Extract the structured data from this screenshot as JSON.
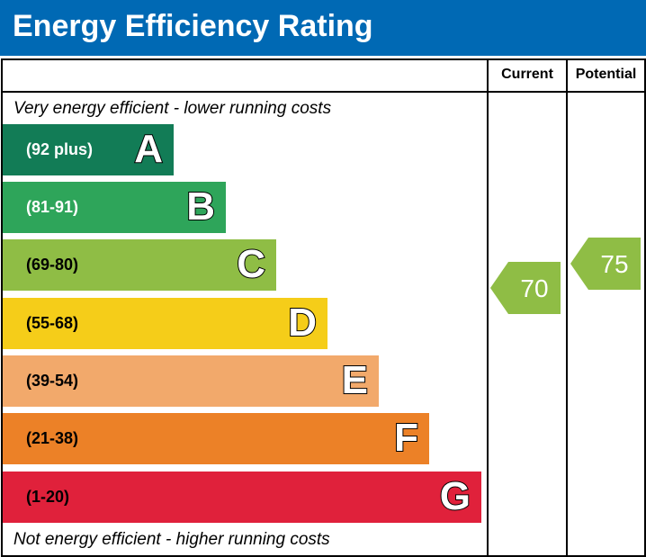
{
  "title": "Energy Efficiency Rating",
  "columns": {
    "current": "Current",
    "potential": "Potential"
  },
  "notes": {
    "top": "Very energy efficient - lower running costs",
    "bottom": "Not energy efficient - higher running costs"
  },
  "chart_data": {
    "type": "bar",
    "bands": [
      {
        "letter": "A",
        "range": "(92 plus)",
        "color": "#127c56",
        "text_color": "#ffffff"
      },
      {
        "letter": "B",
        "range": "(81-91)",
        "color": "#2ea55a",
        "text_color": "#ffffff"
      },
      {
        "letter": "C",
        "range": "(69-80)",
        "color": "#8fbd45",
        "text_color": "#000000"
      },
      {
        "letter": "D",
        "range": "(55-68)",
        "color": "#f5cd19",
        "text_color": "#000000"
      },
      {
        "letter": "E",
        "range": "(39-54)",
        "color": "#f2a96b",
        "text_color": "#000000"
      },
      {
        "letter": "F",
        "range": "(21-38)",
        "color": "#ec8127",
        "text_color": "#000000"
      },
      {
        "letter": "G",
        "range": "(1-20)",
        "color": "#e0213b",
        "text_color": "#000000"
      }
    ],
    "current": {
      "value": "70",
      "band": "C",
      "color": "#8fbd45"
    },
    "potential": {
      "value": "75",
      "band": "C",
      "color": "#8fbd45"
    }
  }
}
